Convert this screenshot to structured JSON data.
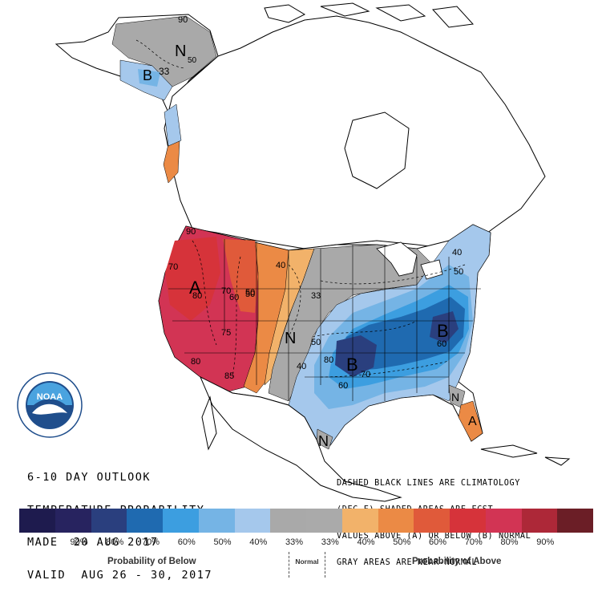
{
  "map": {
    "labels": {
      "N_alaska": "N",
      "v50_alaska": "50",
      "v33_alaska": "33",
      "B_alaska": "B",
      "A_west": "A",
      "N_central": "N",
      "N_texas": "N",
      "B_south": "B",
      "B_east": "B",
      "N_florida": "N",
      "A_florida": "A"
    },
    "contours": [
      "90",
      "70",
      "80",
      "70",
      "60",
      "50",
      "75",
      "80",
      "85",
      "40",
      "50",
      "33",
      "50",
      "40",
      "60",
      "70",
      "60",
      "80",
      "40",
      "50",
      "90"
    ],
    "agency_logo": "NOAA"
  },
  "outlook": {
    "line1": "6-10 DAY OUTLOOK",
    "line2": "TEMPERATURE PROBABILITY",
    "line3": "MADE  20 AUG 2017",
    "line4": "VALID  AUG 26 - 30, 2017"
  },
  "notes": {
    "line1": "DASHED BLACK LINES ARE CLIMATOLOGY",
    "line2": "(DEG F) SHADED AREAS ARE FCST",
    "line3": "VALUES ABOVE (A) OR BELOW (B) NORMAL",
    "line4": "GRAY AREAS ARE NEAR-NORMAL"
  },
  "legend": {
    "swatches": [
      "#1e1b4e",
      "#27235f",
      "#2a3f7e",
      "#1f6ab0",
      "#3c9ee0",
      "#75b4e5",
      "#a5c8ec",
      "#a9a9a9",
      "#aaaaaa",
      "#f2b26a",
      "#eb8a45",
      "#e05a3a",
      "#d6333a",
      "#d23454",
      "#ad2838",
      "#6b1e26"
    ],
    "labels": [
      "",
      "90%",
      "80%",
      "70%",
      "60%",
      "50%",
      "40%",
      "33%",
      "33%",
      "40%",
      "50%",
      "60%",
      "70%",
      "80%",
      "90%",
      ""
    ],
    "below_label": "Probability of Below",
    "normal_label": "Normal",
    "above_label": "Probability of Above"
  }
}
